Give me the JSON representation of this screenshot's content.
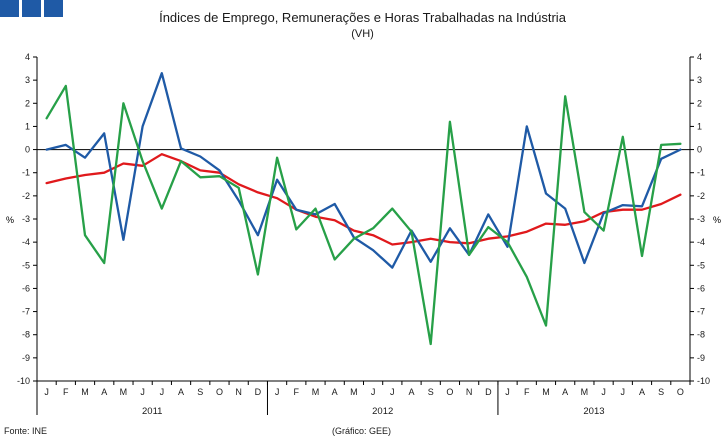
{
  "brand": {
    "logo_color": "#1f5aa6"
  },
  "chart_data": {
    "type": "line",
    "title": "Índices de Emprego, Remunerações e Horas Trabalhadas na Indústria",
    "subtitle": "(VH)",
    "ylabel_left": "%",
    "ylabel_right": "%",
    "ylim": [
      -10,
      4
    ],
    "yticks": [
      "4",
      "3",
      "2",
      "1",
      "0",
      "-1",
      "-2",
      "-3",
      "-4",
      "-5",
      "-6",
      "-7",
      "-8",
      "-9",
      "-10"
    ],
    "categories": [
      "J",
      "F",
      "M",
      "A",
      "M",
      "J",
      "J",
      "A",
      "S",
      "O",
      "N",
      "D",
      "J",
      "F",
      "M",
      "A",
      "M",
      "J",
      "J",
      "A",
      "S",
      "O",
      "N",
      "D",
      "J",
      "F",
      "M",
      "A",
      "M",
      "J",
      "J",
      "A",
      "S",
      "O"
    ],
    "years": [
      {
        "label": "2011",
        "start": 0,
        "end": 12
      },
      {
        "label": "2012",
        "start": 12,
        "end": 24
      },
      {
        "label": "2013",
        "start": 24,
        "end": 34
      }
    ],
    "grid": false,
    "legend": "none",
    "series": [
      {
        "name": "red",
        "color": "#e0191c",
        "values": [
          -1.45,
          -1.25,
          -1.1,
          -1.0,
          -0.6,
          -0.7,
          -0.2,
          -0.5,
          -0.9,
          -1.0,
          -1.5,
          -1.85,
          -2.1,
          -2.6,
          -2.9,
          -3.05,
          -3.5,
          -3.7,
          -4.1,
          -4.0,
          -3.85,
          -4.0,
          -4.05,
          -3.85,
          -3.75,
          -3.55,
          -3.2,
          -3.25,
          -3.1,
          -2.7,
          -2.6,
          -2.6,
          -2.35,
          -1.95
        ]
      },
      {
        "name": "blue",
        "color": "#1f5aa6",
        "values": [
          0.0,
          0.2,
          -0.35,
          0.7,
          -3.9,
          1.0,
          3.3,
          0.05,
          -0.3,
          -0.9,
          -2.2,
          -3.7,
          -1.3,
          -2.6,
          -2.8,
          -2.35,
          -3.8,
          -4.35,
          -5.1,
          -3.5,
          -4.85,
          -3.4,
          -4.55,
          -2.8,
          -4.2,
          1.0,
          -1.9,
          -2.55,
          -4.9,
          -2.75,
          -2.4,
          -2.45,
          -0.4,
          0.0
        ]
      },
      {
        "name": "green",
        "color": "#27a048",
        "values": [
          1.35,
          2.75,
          -3.7,
          -4.9,
          2.0,
          -0.5,
          -2.55,
          -0.5,
          -1.2,
          -1.15,
          -1.65,
          -5.4,
          -0.35,
          -3.45,
          -2.55,
          -4.75,
          -3.85,
          -3.4,
          -2.55,
          -3.55,
          -8.4,
          1.2,
          -4.55,
          -3.35,
          -4.0,
          -5.5,
          -7.6,
          2.3,
          -2.7,
          -3.5,
          0.55,
          -4.6,
          0.2,
          0.25
        ]
      }
    ]
  },
  "footer": {
    "source": "Fonte: INE",
    "credit": "(Gráfico: GEE)"
  }
}
